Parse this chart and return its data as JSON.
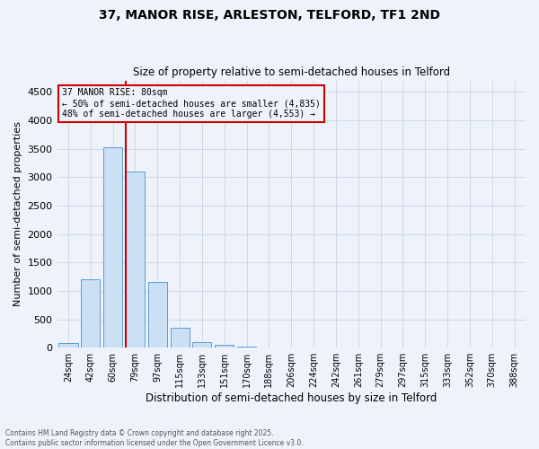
{
  "title1": "37, MANOR RISE, ARLESTON, TELFORD, TF1 2ND",
  "title2": "Size of property relative to semi-detached houses in Telford",
  "xlabel": "Distribution of semi-detached houses by size in Telford",
  "ylabel": "Number of semi-detached properties",
  "bar_labels": [
    "24sqm",
    "42sqm",
    "60sqm",
    "79sqm",
    "97sqm",
    "115sqm",
    "133sqm",
    "151sqm",
    "170sqm",
    "188sqm",
    "206sqm",
    "224sqm",
    "242sqm",
    "261sqm",
    "279sqm",
    "297sqm",
    "315sqm",
    "333sqm",
    "352sqm",
    "370sqm",
    "388sqm"
  ],
  "bar_values": [
    80,
    1200,
    3520,
    3100,
    1150,
    350,
    100,
    55,
    20,
    5,
    2,
    1,
    0,
    0,
    0,
    0,
    0,
    0,
    0,
    0,
    0
  ],
  "bar_color": "#cce0f5",
  "bar_edge_color": "#5b9bd5",
  "grid_color": "#d0d8e8",
  "bg_color": "#eef3fb",
  "vline_color": "#cc0000",
  "annotation_title": "37 MANOR RISE: 80sqm",
  "annotation_line1": "← 50% of semi-detached houses are smaller (4,835)",
  "annotation_line2": "48% of semi-detached houses are larger (4,553) →",
  "annotation_box_color": "#cc0000",
  "footer1": "Contains HM Land Registry data © Crown copyright and database right 2025.",
  "footer2": "Contains public sector information licensed under the Open Government Licence v3.0.",
  "ylim": [
    0,
    4700
  ],
  "yticks": [
    0,
    500,
    1000,
    1500,
    2000,
    2500,
    3000,
    3500,
    4000,
    4500
  ]
}
